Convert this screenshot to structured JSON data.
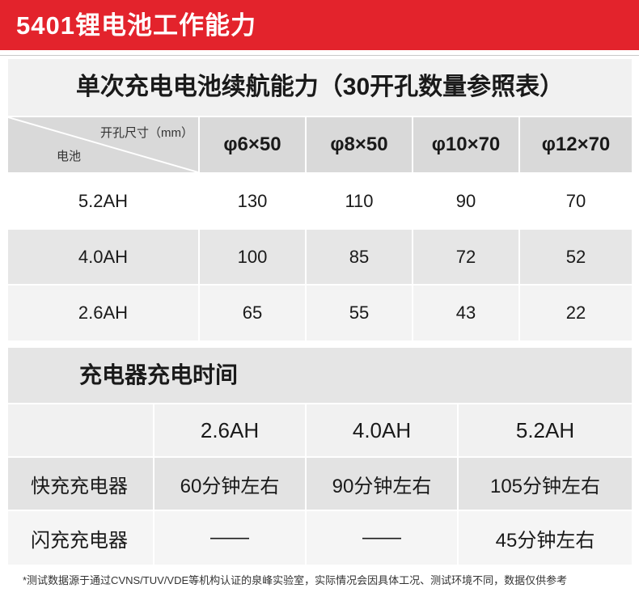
{
  "header": {
    "title": "5401锂电池工作能力"
  },
  "endurance_table": {
    "title": "单次充电电池续航能力（30开孔数量参照表）",
    "corner_top_label": "开孔尺寸（mm）",
    "corner_bottom_label": "电池",
    "columns": [
      "φ6×50",
      "φ8×50",
      "φ10×70",
      "φ12×70"
    ],
    "rows": [
      {
        "battery": "5.2AH",
        "values": [
          "130",
          "110",
          "90",
          "70"
        ]
      },
      {
        "battery": "4.0AH",
        "values": [
          "100",
          "85",
          "72",
          "52"
        ]
      },
      {
        "battery": "2.6AH",
        "values": [
          "65",
          "55",
          "43",
          "22"
        ]
      }
    ]
  },
  "charge_table": {
    "title": "充电器充电时间",
    "columns": [
      "2.6AH",
      "4.0AH",
      "5.2AH"
    ],
    "rows": [
      {
        "charger": "快充充电器",
        "values": [
          "60分钟左右",
          "90分钟左右",
          "105分钟左右"
        ]
      },
      {
        "charger": "闪充充电器",
        "values": [
          "——",
          "——",
          "45分钟左右"
        ]
      }
    ]
  },
  "footnote": "*测试数据源于通过CVNS/TUV/VDE等机构认证的泉峰实验室，实际情况会因具体工况、测试环境不同，数据仅供参考"
}
